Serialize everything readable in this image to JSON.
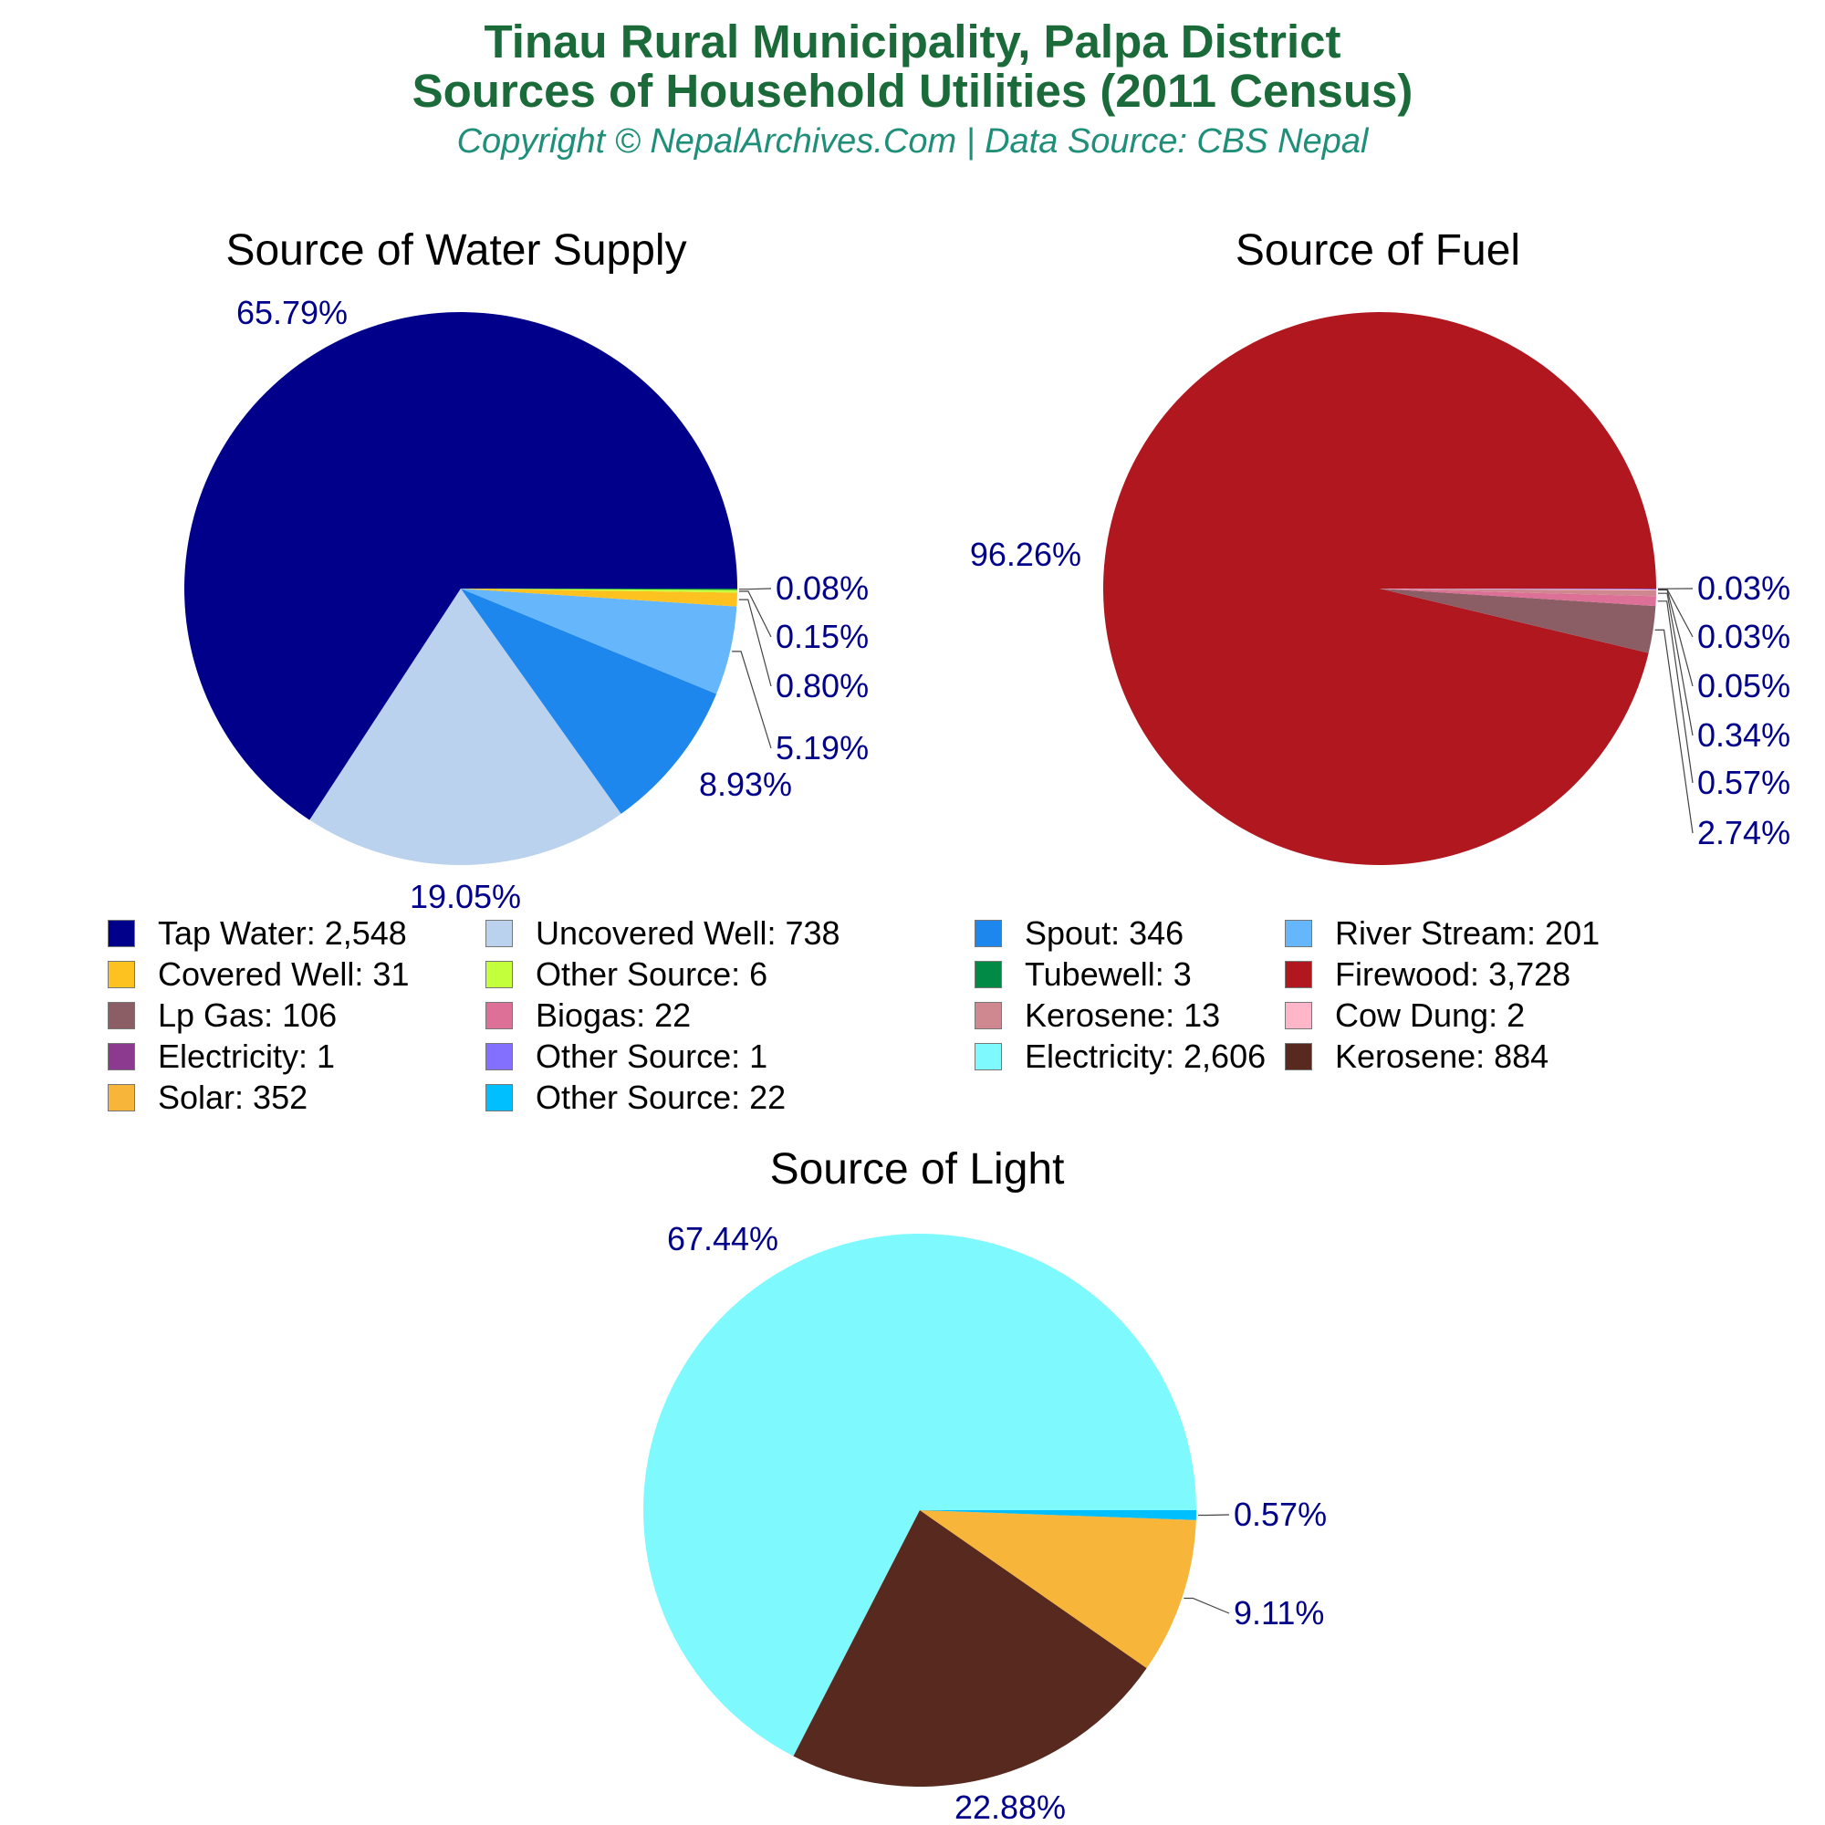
{
  "header": {
    "title_line1": "Tinau Rural Municipality, Palpa District",
    "title_line2": "Sources of Household Utilities (2011 Census)",
    "subtitle": "Copyright © NepalArchives.Com | Data Source: CBS Nepal"
  },
  "chart_data": [
    {
      "type": "pie",
      "title": "Source of Water Supply",
      "slices": [
        {
          "name": "Tap Water",
          "value": 2548,
          "pct": "65.79%",
          "color": "#00008b"
        },
        {
          "name": "Uncovered Well",
          "value": 738,
          "pct": "19.05%",
          "color": "#bad2ee"
        },
        {
          "name": "Spout",
          "value": 346,
          "pct": "8.93%",
          "color": "#1e87ee"
        },
        {
          "name": "River Stream",
          "value": 201,
          "pct": "5.19%",
          "color": "#66b6fc"
        },
        {
          "name": "Covered Well",
          "value": 31,
          "pct": "0.80%",
          "color": "#fdc21f"
        },
        {
          "name": "Other Source",
          "value": 6,
          "pct": "0.15%",
          "color": "#c3ff3a"
        },
        {
          "name": "Tubewell",
          "value": 3,
          "pct": "0.08%",
          "color": "#008a46"
        }
      ]
    },
    {
      "type": "pie",
      "title": "Source of Fuel",
      "slices": [
        {
          "name": "Firewood",
          "value": 3728,
          "pct": "96.26%",
          "color": "#b0171f"
        },
        {
          "name": "Lp Gas",
          "value": 106,
          "pct": "2.74%",
          "color": "#8b5e66"
        },
        {
          "name": "Biogas",
          "value": 22,
          "pct": "0.57%",
          "color": "#dc7096"
        },
        {
          "name": "Kerosene",
          "value": 13,
          "pct": "0.34%",
          "color": "#cf8890"
        },
        {
          "name": "Cow Dung",
          "value": 2,
          "pct": "0.05%",
          "color": "#ffb6c8"
        },
        {
          "name": "Electricity",
          "value": 1,
          "pct": "0.03%",
          "color": "#8b3a8f"
        },
        {
          "name": "Other Source",
          "value": 1,
          "pct": "0.03%",
          "color": "#8470ff"
        }
      ]
    },
    {
      "type": "pie",
      "title": "Source of Light",
      "slices": [
        {
          "name": "Electricity",
          "value": 2606,
          "pct": "67.44%",
          "color": "#7efaff"
        },
        {
          "name": "Kerosene",
          "value": 884,
          "pct": "22.88%",
          "color": "#58291f"
        },
        {
          "name": "Solar",
          "value": 352,
          "pct": "9.11%",
          "color": "#f7b539"
        },
        {
          "name": "Other Source",
          "value": 22,
          "pct": "0.57%",
          "color": "#00bfff"
        }
      ]
    }
  ],
  "legend": {
    "items": [
      {
        "label": "Tap Water: 2,548",
        "color": "#00008b"
      },
      {
        "label": "Uncovered Well: 738",
        "color": "#bad2ee"
      },
      {
        "label": "Spout: 346",
        "color": "#1e87ee"
      },
      {
        "label": "River Stream: 201",
        "color": "#66b6fc"
      },
      {
        "label": "Covered Well: 31",
        "color": "#fdc21f"
      },
      {
        "label": "Other Source: 6",
        "color": "#c3ff3a"
      },
      {
        "label": "Tubewell: 3",
        "color": "#008a46"
      },
      {
        "label": "Firewood: 3,728",
        "color": "#b0171f"
      },
      {
        "label": "Lp Gas: 106",
        "color": "#8b5e66"
      },
      {
        "label": "Biogas: 22",
        "color": "#dc7096"
      },
      {
        "label": "Kerosene: 13",
        "color": "#cf8890"
      },
      {
        "label": "Cow Dung: 2",
        "color": "#ffb6c8"
      },
      {
        "label": "Electricity: 1",
        "color": "#8b3a8f"
      },
      {
        "label": "Other Source: 1",
        "color": "#8470ff"
      },
      {
        "label": "Electricity: 2,606",
        "color": "#7efaff"
      },
      {
        "label": "Kerosene: 884",
        "color": "#58291f"
      },
      {
        "label": "Solar: 352",
        "color": "#f7b539"
      },
      {
        "label": "Other Source: 22",
        "color": "#00bfff"
      }
    ]
  },
  "style": {
    "label_color": "#00008b"
  }
}
